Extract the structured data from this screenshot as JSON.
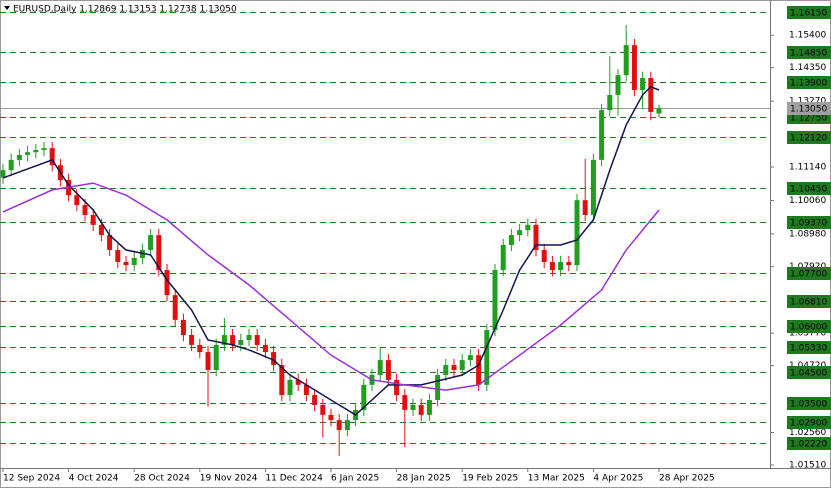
{
  "chart_data": {
    "type": "candlestick",
    "title": "EURUSD,Daily  1.12869 1.13153 1.12738 1.13050",
    "categories": [
      "12 Sep 2024",
      null,
      null,
      null,
      null,
      null,
      null,
      null,
      "4 Oct 2024",
      null,
      null,
      null,
      null,
      null,
      null,
      null,
      "28 Oct 2024",
      null,
      null,
      null,
      null,
      null,
      null,
      null,
      "19 Nov 2024",
      null,
      null,
      null,
      null,
      null,
      null,
      null,
      "11 Dec 2024",
      null,
      null,
      null,
      null,
      null,
      null,
      null,
      "6 Jan 2025",
      null,
      null,
      null,
      null,
      null,
      null,
      null,
      "28 Jan 2025",
      null,
      null,
      null,
      null,
      null,
      null,
      null,
      "19 Feb 2025",
      null,
      null,
      null,
      null,
      null,
      null,
      null,
      "13 Mar 2025",
      null,
      null,
      null,
      null,
      null,
      null,
      null,
      "4 Apr 2025",
      null,
      null,
      null,
      null,
      null,
      null,
      null,
      "28 Apr 2025"
    ],
    "open": [
      1.108,
      1.1104,
      1.1137,
      1.1153,
      1.1162,
      1.1169,
      1.1175,
      1.112,
      1.1072,
      1.1023,
      1.0991,
      1.0959,
      1.0927,
      1.0894,
      1.0846,
      1.0807,
      1.0797,
      1.082,
      1.0846,
      1.0894,
      1.0781,
      1.07,
      1.062,
      1.0571,
      1.0539,
      1.0516,
      1.0458,
      1.0539,
      1.0571,
      1.0539,
      1.0555,
      1.0571,
      1.0539,
      1.0516,
      1.0474,
      1.0377,
      1.0426,
      1.041,
      1.0377,
      1.0345,
      1.0313,
      1.0296,
      1.0264,
      1.0296,
      1.0329,
      1.041,
      1.0442,
      1.049,
      1.0426,
      1.0377,
      1.0329,
      1.0345,
      1.0313,
      1.0361,
      1.0442,
      1.0474,
      1.0458,
      1.049,
      1.0506,
      1.041,
      1.0587,
      1.0781,
      1.0862,
      1.0894,
      1.091,
      1.0927,
      1.0846,
      1.0807,
      1.0781,
      1.0807,
      1.0797,
      1.1007,
      1.0959,
      1.1137,
      1.1298,
      1.1347,
      1.1411,
      1.1508,
      1.1363,
      1.1402,
      1.12869
    ],
    "high": [
      1.1124,
      1.1157,
      1.1173,
      1.1182,
      1.1189,
      1.1195,
      1.1195,
      1.114,
      1.1092,
      1.1043,
      1.1011,
      1.0979,
      1.0947,
      1.0914,
      1.0866,
      1.0827,
      1.084,
      1.0866,
      1.0914,
      1.0914,
      1.0801,
      1.072,
      1.064,
      1.0591,
      1.0559,
      1.0536,
      1.0559,
      1.0626,
      1.0591,
      1.0575,
      1.0591,
      1.0591,
      1.0559,
      1.0536,
      1.0494,
      1.0446,
      1.0446,
      1.043,
      1.0397,
      1.0365,
      1.0333,
      1.0316,
      1.0316,
      1.0349,
      1.043,
      1.0462,
      1.053,
      1.051,
      1.0446,
      1.0397,
      1.0365,
      1.0365,
      1.0381,
      1.0462,
      1.0494,
      1.0494,
      1.051,
      1.0526,
      1.0526,
      1.0607,
      1.0801,
      1.0882,
      1.0914,
      1.093,
      1.0947,
      1.0947,
      1.0866,
      1.0827,
      1.0827,
      1.0827,
      1.1027,
      1.114,
      1.1157,
      1.1318,
      1.1473,
      1.1431,
      1.1573,
      1.1528,
      1.1422,
      1.1422,
      1.13153
    ],
    "low": [
      1.106,
      1.1084,
      1.1117,
      1.1133,
      1.1142,
      1.1149,
      1.11,
      1.1052,
      1.1003,
      1.0971,
      1.0939,
      1.0907,
      1.0874,
      1.0826,
      1.0787,
      1.0777,
      1.0777,
      1.08,
      1.0826,
      1.0761,
      1.068,
      1.06,
      1.0551,
      1.0519,
      1.0496,
      1.034,
      1.0438,
      1.0519,
      1.0519,
      1.0519,
      1.0535,
      1.0519,
      1.0496,
      1.0454,
      1.0357,
      1.0357,
      1.039,
      1.0357,
      1.0325,
      1.024,
      1.0276,
      1.018,
      1.0244,
      1.0276,
      1.0309,
      1.039,
      1.0422,
      1.0406,
      1.0357,
      1.0209,
      1.0309,
      1.0293,
      1.0293,
      1.0341,
      1.0422,
      1.0438,
      1.0438,
      1.047,
      1.039,
      1.039,
      1.0567,
      1.0761,
      1.0842,
      1.0874,
      1.089,
      1.0826,
      1.0787,
      1.0761,
      1.0761,
      1.0777,
      1.0777,
      1.0939,
      1.0939,
      1.1117,
      1.1278,
      1.128,
      1.1391,
      1.1343,
      1.13,
      1.1265,
      1.12738
    ],
    "close": [
      1.1104,
      1.1137,
      1.1153,
      1.1162,
      1.1169,
      1.1175,
      1.112,
      1.1072,
      1.1023,
      1.0991,
      1.0959,
      1.0927,
      1.0894,
      1.0846,
      1.0807,
      1.0797,
      1.082,
      1.0846,
      1.0894,
      1.0781,
      1.07,
      1.062,
      1.0571,
      1.0539,
      1.0516,
      1.0458,
      1.0539,
      1.0571,
      1.0539,
      1.0555,
      1.0571,
      1.0539,
      1.0516,
      1.0474,
      1.0377,
      1.0426,
      1.041,
      1.0377,
      1.0345,
      1.0313,
      1.0296,
      1.0264,
      1.0296,
      1.0329,
      1.041,
      1.0442,
      1.049,
      1.0426,
      1.0377,
      1.0329,
      1.0345,
      1.0313,
      1.0361,
      1.0442,
      1.0474,
      1.0458,
      1.049,
      1.0506,
      1.041,
      1.0587,
      1.0781,
      1.0862,
      1.0894,
      1.091,
      1.0927,
      1.0846,
      1.0807,
      1.0781,
      1.0807,
      1.0797,
      1.1007,
      1.0959,
      1.1137,
      1.1298,
      1.1347,
      1.1411,
      1.1508,
      1.1363,
      1.1402,
      1.1292,
      1.1305
    ],
    "up_color": "#1f9e1f",
    "down_color": "#e01010",
    "moving_averages": [
      {
        "color": "#141450",
        "x": [
          0,
          6,
          8,
          11,
          13,
          15,
          18,
          20,
          23,
          25,
          28,
          30,
          33,
          35,
          37,
          40,
          43,
          47,
          51,
          56,
          58,
          61,
          63,
          65,
          68,
          70,
          72,
          74,
          76,
          78,
          79,
          80
        ],
        "values": [
          1.1079,
          1.1137,
          1.1056,
          1.0975,
          1.0894,
          1.0846,
          1.083,
          1.0749,
          1.0652,
          1.0555,
          1.0539,
          1.0523,
          1.049,
          1.0442,
          1.041,
          1.0361,
          1.0313,
          1.041,
          1.041,
          1.0442,
          1.0474,
          1.0652,
          1.0781,
          1.0862,
          1.0862,
          1.0878,
          1.0943,
          1.1104,
          1.125,
          1.1347,
          1.1373,
          1.1363
        ]
      },
      {
        "color": "#9b30d9",
        "x": [
          0,
          6,
          11,
          15,
          20,
          25,
          30,
          35,
          40,
          45,
          49,
          54,
          58,
          63,
          68,
          73,
          76,
          80
        ],
        "values": [
          1.0969,
          1.104,
          1.1062,
          1.1023,
          1.0943,
          1.083,
          1.0733,
          1.062,
          1.0506,
          1.0426,
          1.041,
          1.0393,
          1.041,
          1.0506,
          1.0603,
          1.0717,
          1.0846,
          1.0975
        ]
      }
    ],
    "level_color": "#1e7a1e",
    "levels": [
      {
        "value": 1.1615,
        "label": "1.16150"
      },
      {
        "value": 1.1485,
        "label": "1.14850"
      },
      {
        "value": 1.139,
        "label": "1.13900"
      },
      {
        "value": 1.1275,
        "label": "1.12750"
      },
      {
        "value": 1.1212,
        "label": "1.12120"
      },
      {
        "value": 1.1045,
        "label": "1.10450"
      },
      {
        "value": 1.0937,
        "label": "1.09370"
      },
      {
        "value": 1.077,
        "label": "1.07700"
      },
      {
        "value": 1.0681,
        "label": "1.06810"
      },
      {
        "value": 1.06,
        "label": "1.06000"
      },
      {
        "value": 1.0533,
        "label": "1.05330"
      },
      {
        "value": 1.045,
        "label": "1.04500"
      },
      {
        "value": 1.035,
        "label": "1.03500"
      },
      {
        "value": 1.029,
        "label": "1.02900"
      },
      {
        "value": 1.0222,
        "label": "1.02220"
      }
    ],
    "last_price": {
      "value": 1.1305,
      "label": "1.13050"
    },
    "ylim": [
      1.01413,
      1.16538
    ],
    "yticks": [
      {
        "value": 1.154,
        "label": "1.15400"
      },
      {
        "value": 1.1435,
        "label": "1.14350"
      },
      {
        "value": 1.1327,
        "label": "1.13270"
      },
      {
        "value": 1.1114,
        "label": "1.11140"
      },
      {
        "value": 1.1006,
        "label": "1.10060"
      },
      {
        "value": 1.0898,
        "label": "1.08980"
      },
      {
        "value": 1.0792,
        "label": "1.07920"
      },
      {
        "value": 1.0577,
        "label": "1.05770"
      },
      {
        "value": 1.0472,
        "label": "1.04720"
      },
      {
        "value": 1.0256,
        "label": "1.02560"
      },
      {
        "value": 1.0151,
        "label": "1.01510"
      }
    ],
    "grid": false
  }
}
